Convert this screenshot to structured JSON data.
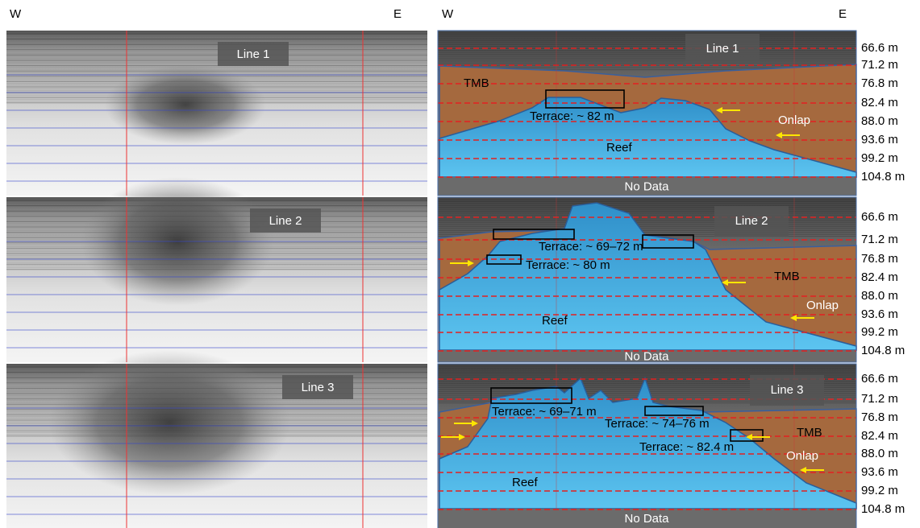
{
  "header": {
    "left": {
      "west": "W",
      "east": "E"
    },
    "right": {
      "west": "W",
      "east": "E"
    }
  },
  "panels": [
    {
      "seismic_label": "Line 1",
      "interpretation": {
        "line_label": "Line 1",
        "tmb": "TMB",
        "reef": "Reef",
        "onlap": "Onlap",
        "no_data": "No Data",
        "terraces": [
          "Terrace: ~ 82 m"
        ]
      },
      "depth_labels": [
        "66.6 m",
        "71.2 m",
        "76.8 m",
        "82.4 m",
        "88.0 m",
        "93.6 m",
        "99.2 m",
        "104.8 m"
      ]
    },
    {
      "seismic_label": "Line 2",
      "interpretation": {
        "line_label": "Line 2",
        "tmb": "TMB",
        "reef": "Reef",
        "onlap": "Onlap",
        "no_data": "No Data",
        "terraces": [
          "Terrace: ~ 69–72 m",
          "Terrace: ~ 80 m"
        ]
      },
      "depth_labels": [
        "66.6 m",
        "71.2 m",
        "76.8 m",
        "82.4 m",
        "88.0 m",
        "93.6 m",
        "99.2 m",
        "104.8 m"
      ]
    },
    {
      "seismic_label": "Line 3",
      "interpretation": {
        "line_label": "Line 3",
        "tmb": "TMB",
        "reef": "Reef",
        "onlap": "Onlap",
        "no_data": "No Data",
        "terraces": [
          "Terrace: ~ 69–71 m",
          "Terrace: ~ 74–76 m",
          "Terrace: ~ 82.4 m"
        ]
      },
      "depth_labels": [
        "66.6 m",
        "71.2 m",
        "76.8 m",
        "82.4 m",
        "88.0 m",
        "93.6 m",
        "99.2 m",
        "104.8 m"
      ]
    }
  ]
}
